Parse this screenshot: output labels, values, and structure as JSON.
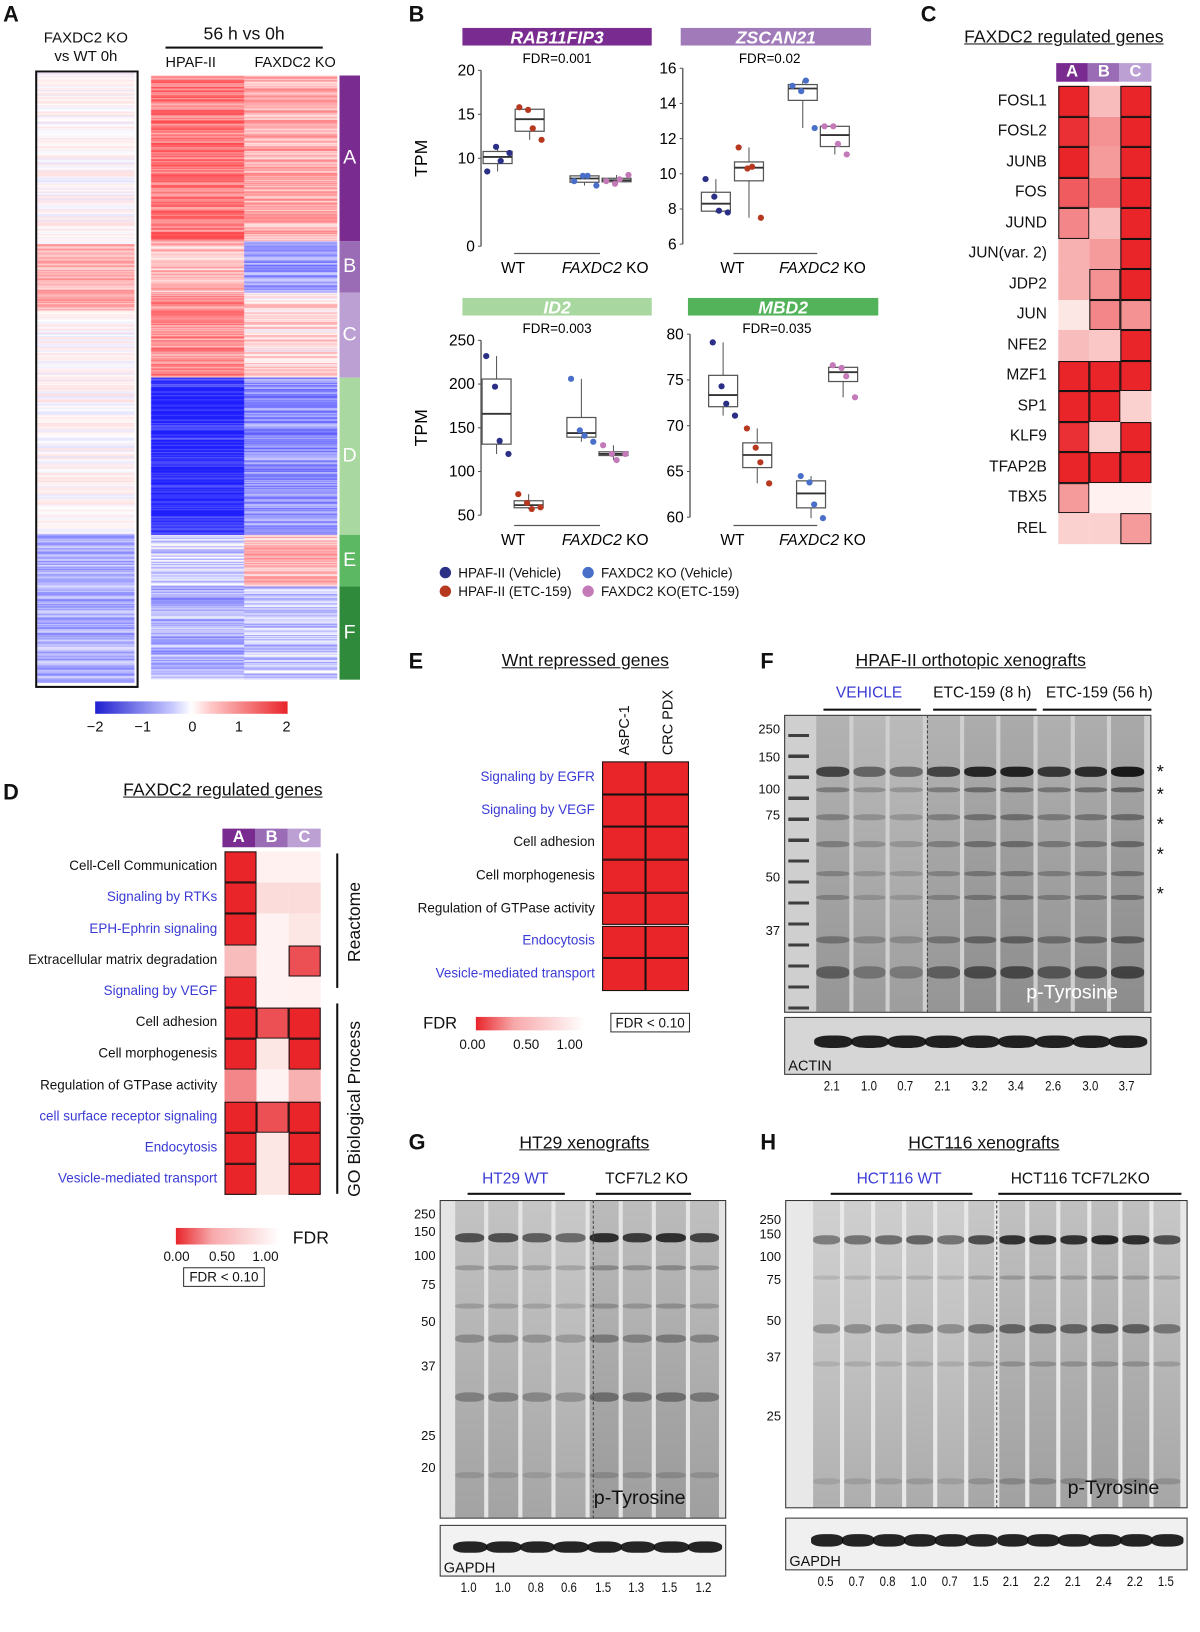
{
  "panelA": {
    "label": "A",
    "col1_title_line1": "FAXDC2 KO",
    "col1_title_line2": "vs WT 0h",
    "header": "56 h vs 0h",
    "col_hpaf": "HPAF-II",
    "col_ko": "FAXDC2 KO",
    "clusters": [
      {
        "name": "A",
        "color": "#7a2b8f"
      },
      {
        "name": "B",
        "color": "#9a6cb6"
      },
      {
        "name": "C",
        "color": "#bca0d4"
      },
      {
        "name": "D",
        "color": "#a9d8a1"
      },
      {
        "name": "E",
        "color": "#5cb862"
      },
      {
        "name": "F",
        "color": "#2f8a3c"
      }
    ],
    "scale_ticks": [
      "−2",
      "−1",
      "0",
      "1",
      "2"
    ],
    "scale_low": "#1f1fd0",
    "scale_high": "#e8252a"
  },
  "panelB": {
    "label": "B",
    "ylabel": "TPM",
    "group_wt": "WT",
    "group_ko_italic": "FAXDC2",
    "group_ko_suffix": " KO",
    "legend": [
      {
        "label": "HPAF-II (Vehicle)",
        "color": "#2b2f86"
      },
      {
        "label": "FAXDC2 KO (Vehicle)",
        "color": "#4a6fc9"
      },
      {
        "label": "HPAF-II (ETC-159)",
        "color": "#b5381f"
      },
      {
        "label": "FAXDC2 KO(ETC-159)",
        "color": "#c479b8"
      }
    ]
  },
  "chart_data": [
    {
      "type": "box",
      "title": "RAB11FIP3",
      "title_color": "#7a2b8f",
      "fdr": "FDR=0.001",
      "ylim": [
        0,
        20
      ],
      "yticks": [
        0,
        10,
        15,
        20
      ],
      "groups": [
        [
          8.5,
          11.3,
          9.7,
          10.6
        ],
        [
          15.8,
          15.5,
          13.4,
          12.1
        ],
        [
          7.4,
          8.0,
          8.0,
          6.9
        ],
        [
          7.4,
          7.1,
          7.6,
          8.1
        ]
      ]
    },
    {
      "type": "box",
      "title": "ZSCAN21",
      "title_color": "#a07ab9",
      "fdr": "FDR=0.02",
      "ylim": [
        6,
        16
      ],
      "yticks": [
        6,
        8,
        10,
        12,
        14,
        16
      ],
      "groups": [
        [
          9.7,
          8.7,
          7.9,
          7.8
        ],
        [
          11.5,
          10.3,
          10.4,
          7.5
        ],
        [
          15.0,
          14.7,
          15.3,
          12.6
        ],
        [
          12.7,
          12.7,
          11.7,
          11.1
        ]
      ]
    },
    {
      "type": "box",
      "title": "ID2",
      "title_color": "#a8d8a0",
      "fdr": "FDR=0.003",
      "ylim": [
        50,
        250
      ],
      "yticks": [
        50,
        100,
        150,
        200,
        250
      ],
      "groups": [
        [
          232,
          197,
          135,
          120
        ],
        [
          74,
          64,
          57,
          59
        ],
        [
          206,
          147,
          141,
          134
        ],
        [
          130,
          120,
          113,
          120
        ]
      ]
    },
    {
      "type": "box",
      "title": "MBD2",
      "title_color": "#52b35a",
      "fdr": "FDR=0.035",
      "ylim": [
        60,
        80
      ],
      "yticks": [
        60,
        65,
        70,
        75,
        80
      ],
      "groups": [
        [
          79.1,
          74.3,
          72.4,
          71.1
        ],
        [
          69.7,
          67.6,
          66.0,
          63.7
        ],
        [
          64.5,
          63.8,
          61.4,
          59.9
        ],
        [
          76.6,
          76.3,
          75.4,
          73.1
        ]
      ]
    }
  ],
  "panelC": {
    "label": "C",
    "title": "FAXDC2 regulated genes",
    "columns": [
      "A",
      "B",
      "C"
    ],
    "rows": [
      {
        "gene": "FOSL1",
        "shade": [
          1,
          0.3,
          1
        ],
        "sig": [
          1,
          0,
          1
        ]
      },
      {
        "gene": "FOSL2",
        "shade": [
          0.95,
          0.5,
          1
        ],
        "sig": [
          1,
          0,
          1
        ]
      },
      {
        "gene": "JUNB",
        "shade": [
          1,
          0.45,
          1
        ],
        "sig": [
          1,
          0,
          1
        ]
      },
      {
        "gene": "FOS",
        "shade": [
          0.75,
          0.65,
          1
        ],
        "sig": [
          1,
          0,
          1
        ]
      },
      {
        "gene": "JUND",
        "shade": [
          0.55,
          0.3,
          1
        ],
        "sig": [
          1,
          0,
          1
        ]
      },
      {
        "gene": "JUN(var. 2)",
        "shade": [
          0.35,
          0.45,
          1
        ],
        "sig": [
          0,
          0,
          1
        ]
      },
      {
        "gene": "JDP2",
        "shade": [
          0.35,
          0.5,
          1
        ],
        "sig": [
          0,
          1,
          1
        ]
      },
      {
        "gene": "JUN",
        "shade": [
          0.1,
          0.55,
          0.5
        ],
        "sig": [
          0,
          1,
          1
        ]
      },
      {
        "gene": "NFE2",
        "shade": [
          0.3,
          0.25,
          1
        ],
        "sig": [
          0,
          0,
          1
        ]
      },
      {
        "gene": "MZF1",
        "shade": [
          1,
          1,
          1
        ],
        "sig": [
          1,
          1,
          1
        ]
      },
      {
        "gene": "SP1",
        "shade": [
          1,
          1,
          0.2
        ],
        "sig": [
          1,
          1,
          0
        ]
      },
      {
        "gene": "KLF9",
        "shade": [
          0.95,
          0.2,
          1
        ],
        "sig": [
          1,
          0,
          1
        ]
      },
      {
        "gene": "TFAP2B",
        "shade": [
          1,
          1,
          1
        ],
        "sig": [
          1,
          1,
          1
        ]
      },
      {
        "gene": "TBX5",
        "shade": [
          0.45,
          0.05,
          0.05
        ],
        "sig": [
          1,
          0,
          0
        ]
      },
      {
        "gene": "REL",
        "shade": [
          0.2,
          0.2,
          0.45
        ],
        "sig": [
          0,
          0,
          1
        ]
      }
    ]
  },
  "panelD": {
    "label": "D",
    "title": "FAXDC2 regulated genes",
    "columns": [
      "A",
      "B",
      "C"
    ],
    "group_reactome": "Reactome",
    "group_go": "GO Biological Process",
    "rows": [
      {
        "term": "Cell-Cell Communication",
        "blue": false,
        "shade": [
          1,
          0.05,
          0.05
        ],
        "sig": [
          1,
          0,
          0
        ]
      },
      {
        "term": "Signaling by RTKs",
        "blue": true,
        "shade": [
          1,
          0.15,
          0.15
        ],
        "sig": [
          1,
          0,
          0
        ]
      },
      {
        "term": "EPH-Ephrin signaling",
        "blue": true,
        "shade": [
          1,
          0.04,
          0.1
        ],
        "sig": [
          1,
          0,
          0
        ]
      },
      {
        "term": "Extracellular matrix degradation",
        "blue": false,
        "shade": [
          0.3,
          0.04,
          0.8
        ],
        "sig": [
          0,
          0,
          1
        ]
      },
      {
        "term": "Signaling by VEGF",
        "blue": true,
        "shade": [
          1,
          0.04,
          0.05
        ],
        "sig": [
          1,
          0,
          0
        ]
      },
      {
        "term": "Cell adhesion",
        "blue": false,
        "shade": [
          1,
          0.8,
          1
        ],
        "sig": [
          1,
          1,
          1
        ]
      },
      {
        "term": "Cell morphogenesis",
        "blue": false,
        "shade": [
          1,
          0.1,
          1
        ],
        "sig": [
          1,
          0,
          1
        ]
      },
      {
        "term": "Regulation of GTPase activity",
        "blue": false,
        "shade": [
          0.55,
          0.04,
          0.35
        ],
        "sig": [
          0,
          0,
          0
        ]
      },
      {
        "term": "cell surface receptor signaling",
        "blue": true,
        "shade": [
          1,
          0.8,
          1
        ],
        "sig": [
          1,
          1,
          1
        ]
      },
      {
        "term": "Endocytosis",
        "blue": true,
        "shade": [
          1,
          0.1,
          1
        ],
        "sig": [
          1,
          0,
          1
        ]
      },
      {
        "term": "Vesicle-mediated transport",
        "blue": true,
        "shade": [
          1,
          0.1,
          1
        ],
        "sig": [
          1,
          0,
          1
        ]
      }
    ],
    "legend": {
      "title": "FDR",
      "ticks": [
        "0.00",
        "0.50",
        "1.00"
      ],
      "sig_label": "FDR < 0.10"
    }
  },
  "panelE": {
    "label": "E",
    "title": "Wnt repressed genes",
    "columns": [
      "AsPC-1",
      "CRC PDX"
    ],
    "rows": [
      {
        "term": "Signaling by EGFR",
        "blue": true
      },
      {
        "term": "Signaling by VEGF",
        "blue": true
      },
      {
        "term": "Cell adhesion",
        "blue": false
      },
      {
        "term": "Cell morphogenesis",
        "blue": false
      },
      {
        "term": "Regulation of GTPase activity",
        "blue": false
      },
      {
        "term": "Endocytosis",
        "blue": true
      },
      {
        "term": "Vesicle-mediated transport",
        "blue": true
      }
    ],
    "legend": {
      "title": "FDR",
      "ticks": [
        "0.00",
        "0.50",
        "1.00"
      ],
      "sig_label": "FDR < 0.10"
    }
  },
  "panelF": {
    "label": "F",
    "title": "HPAF-II orthotopic xenografts",
    "groups": [
      "VEHICLE",
      "ETC-159 (8 h)",
      "ETC-159 (56 h)"
    ],
    "mw": [
      "250",
      "150",
      "100",
      "75",
      "50",
      "37"
    ],
    "blot_label": "p-Tyrosine",
    "loading_label": "ACTIN",
    "quant": [
      "2.1",
      "1.0",
      "0.7",
      "2.1",
      "3.2",
      "3.4",
      "2.6",
      "3.0",
      "3.7"
    ],
    "star": "*"
  },
  "panelG": {
    "label": "G",
    "title": "HT29 xenografts",
    "groups": [
      "HT29 WT",
      "TCF7L2 KO"
    ],
    "mw": [
      "250",
      "150",
      "100",
      "75",
      "50",
      "37",
      "25",
      "20"
    ],
    "blot_label": "p-Tyrosine",
    "loading_label": "GAPDH",
    "quant": [
      "1.0",
      "1.0",
      "0.8",
      "0.6",
      "1.5",
      "1.3",
      "1.5",
      "1.2"
    ]
  },
  "panelH": {
    "label": "H",
    "title": "HCT116 xenografts",
    "groups": [
      "HCT116 WT",
      "HCT116 TCF7L2KO"
    ],
    "mw": [
      "250",
      "150",
      "100",
      "75",
      "50",
      "37",
      "25"
    ],
    "blot_label": "p-Tyrosine",
    "loading_label": "GAPDH",
    "quant": [
      "0.5",
      "0.7",
      "0.8",
      "1.0",
      "0.7",
      "1.5",
      "2.1",
      "2.2",
      "2.1",
      "2.4",
      "2.2",
      "1.5"
    ]
  }
}
